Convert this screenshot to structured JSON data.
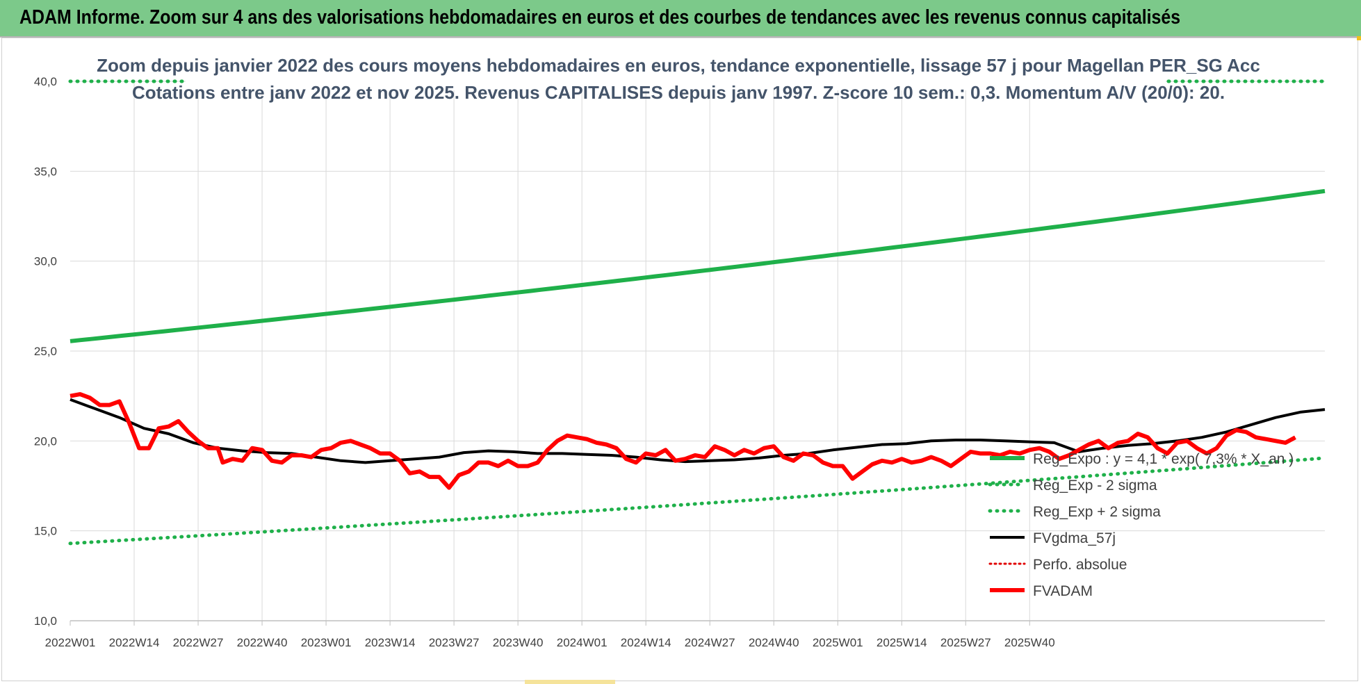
{
  "header": {
    "title": "ADAM Informe. Zoom sur 4 ans des valorisations hebdomadaires en euros et des courbes de tendances avec les revenus connus capitalisés"
  },
  "colors": {
    "header_bg": "#7cc98a",
    "trend": "#1fb04a",
    "band": "#1fb04a",
    "smooth": "#000000",
    "perf": "#e00000",
    "price": "#ff0000",
    "grid": "#d9d9d9"
  },
  "chart_data": {
    "type": "line",
    "title_lines": [
      "Zoom depuis janvier 2022 des cours moyens hebdomadaires en euros, tendance exponentielle, lissage 57 j pour Magellan PER_SG Acc",
      "Cotations entre janv 2022 et nov 2025. Revenus CAPITALISES depuis janv 1997. Z-score 10 sem.: 0,3. Momentum A/V (20/0): 20."
    ],
    "ylim": [
      10,
      40
    ],
    "y_ticks": [
      "10,0",
      "15,0",
      "20,0",
      "25,0",
      "30,0",
      "35,0",
      "40,0"
    ],
    "x_ticks": [
      "2022W01",
      "2022W14",
      "2022W27",
      "2022W40",
      "2023W01",
      "2023W14",
      "2023W27",
      "2023W40",
      "2024W01",
      "2024W14",
      "2024W27",
      "2024W40",
      "2025W01",
      "2025W14",
      "2025W27",
      "2025W40"
    ],
    "x_weeks_total": 206,
    "tick_step_weeks": 13,
    "legend_position": "right",
    "series": [
      {
        "name": "Reg_Expo : y = 4,1 * exp( 7,3% * X_an )",
        "style": "solid-thick",
        "color": "#1fb04a",
        "start": 25.55,
        "end": 33.9
      },
      {
        "name": "Reg_Exp - 2 sigma",
        "style": "dotted",
        "color": "#1fb04a",
        "start": 14.3,
        "end": 19.05
      },
      {
        "name": "Reg_Exp + 2 sigma",
        "style": "dotted",
        "color": "#1fb04a",
        "start": 40.0,
        "end": 40.0
      },
      {
        "name": "FVgdma_57j",
        "style": "solid",
        "color": "#000000",
        "points": [
          [
            0,
            22.3
          ],
          [
            5,
            21.8
          ],
          [
            10,
            21.3
          ],
          [
            15,
            20.7
          ],
          [
            20,
            20.4
          ],
          [
            25,
            19.9
          ],
          [
            30,
            19.6
          ],
          [
            35,
            19.45
          ],
          [
            40,
            19.35
          ],
          [
            45,
            19.3
          ],
          [
            50,
            19.1
          ],
          [
            55,
            18.9
          ],
          [
            60,
            18.8
          ],
          [
            65,
            18.9
          ],
          [
            70,
            19.0
          ],
          [
            75,
            19.1
          ],
          [
            80,
            19.35
          ],
          [
            85,
            19.45
          ],
          [
            90,
            19.4
          ],
          [
            95,
            19.3
          ],
          [
            100,
            19.3
          ],
          [
            105,
            19.25
          ],
          [
            110,
            19.2
          ],
          [
            115,
            19.1
          ],
          [
            120,
            18.95
          ],
          [
            125,
            18.85
          ],
          [
            130,
            18.9
          ],
          [
            135,
            18.95
          ],
          [
            140,
            19.05
          ],
          [
            145,
            19.2
          ],
          [
            150,
            19.3
          ],
          [
            155,
            19.5
          ],
          [
            160,
            19.65
          ],
          [
            165,
            19.8
          ],
          [
            170,
            19.85
          ],
          [
            175,
            20.0
          ],
          [
            180,
            20.05
          ],
          [
            185,
            20.05
          ],
          [
            190,
            20.0
          ],
          [
            195,
            19.95
          ],
          [
            200,
            19.9
          ],
          [
            205,
            19.4
          ],
          [
            210,
            19.6
          ],
          [
            215,
            19.75
          ],
          [
            220,
            19.85
          ],
          [
            225,
            20.0
          ],
          [
            230,
            20.2
          ],
          [
            235,
            20.5
          ],
          [
            240,
            20.9
          ],
          [
            245,
            21.3
          ],
          [
            250,
            21.6
          ],
          [
            255,
            21.75
          ]
        ]
      },
      {
        "name": "Perfo. absolue",
        "style": "dotted",
        "color": "#e00000",
        "points": []
      },
      {
        "name": "FVADAM",
        "style": "solid-thick",
        "color": "#ff0000",
        "points": [
          [
            0,
            22.5
          ],
          [
            2,
            22.6
          ],
          [
            4,
            22.4
          ],
          [
            6,
            22.0
          ],
          [
            8,
            22.0
          ],
          [
            10,
            22.2
          ],
          [
            12,
            21.0
          ],
          [
            14,
            19.6
          ],
          [
            16,
            19.6
          ],
          [
            18,
            20.7
          ],
          [
            20,
            20.8
          ],
          [
            22,
            21.1
          ],
          [
            24,
            20.5
          ],
          [
            26,
            20.0
          ],
          [
            28,
            19.6
          ],
          [
            30,
            19.6
          ],
          [
            31,
            18.8
          ],
          [
            33,
            19.0
          ],
          [
            35,
            18.9
          ],
          [
            37,
            19.6
          ],
          [
            39,
            19.5
          ],
          [
            41,
            18.9
          ],
          [
            43,
            18.8
          ],
          [
            45,
            19.2
          ],
          [
            47,
            19.2
          ],
          [
            49,
            19.1
          ],
          [
            51,
            19.5
          ],
          [
            53,
            19.6
          ],
          [
            55,
            19.9
          ],
          [
            57,
            20.0
          ],
          [
            59,
            19.8
          ],
          [
            61,
            19.6
          ],
          [
            63,
            19.3
          ],
          [
            65,
            19.3
          ],
          [
            67,
            18.9
          ],
          [
            69,
            18.2
          ],
          [
            71,
            18.3
          ],
          [
            73,
            18.0
          ],
          [
            75,
            18.0
          ],
          [
            77,
            17.4
          ],
          [
            79,
            18.1
          ],
          [
            81,
            18.3
          ],
          [
            83,
            18.8
          ],
          [
            85,
            18.8
          ],
          [
            87,
            18.6
          ],
          [
            89,
            18.9
          ],
          [
            91,
            18.6
          ],
          [
            93,
            18.6
          ],
          [
            95,
            18.8
          ],
          [
            97,
            19.5
          ],
          [
            99,
            20.0
          ],
          [
            101,
            20.3
          ],
          [
            103,
            20.2
          ],
          [
            105,
            20.1
          ],
          [
            107,
            19.9
          ],
          [
            109,
            19.8
          ],
          [
            111,
            19.6
          ],
          [
            113,
            19.0
          ],
          [
            115,
            18.8
          ],
          [
            117,
            19.3
          ],
          [
            119,
            19.2
          ],
          [
            121,
            19.5
          ],
          [
            123,
            18.9
          ],
          [
            125,
            19.0
          ],
          [
            127,
            19.2
          ],
          [
            129,
            19.1
          ],
          [
            131,
            19.7
          ],
          [
            133,
            19.5
          ],
          [
            135,
            19.2
          ],
          [
            137,
            19.5
          ],
          [
            139,
            19.3
          ],
          [
            141,
            19.6
          ],
          [
            143,
            19.7
          ],
          [
            145,
            19.1
          ],
          [
            147,
            18.9
          ],
          [
            149,
            19.3
          ],
          [
            151,
            19.2
          ],
          [
            153,
            18.8
          ],
          [
            155,
            18.6
          ],
          [
            157,
            18.6
          ],
          [
            159,
            17.9
          ],
          [
            161,
            18.3
          ],
          [
            163,
            18.7
          ],
          [
            165,
            18.9
          ],
          [
            167,
            18.8
          ],
          [
            169,
            19.0
          ],
          [
            171,
            18.8
          ],
          [
            173,
            18.9
          ],
          [
            175,
            19.1
          ],
          [
            177,
            18.9
          ],
          [
            179,
            18.6
          ],
          [
            181,
            19.0
          ],
          [
            183,
            19.4
          ],
          [
            185,
            19.3
          ],
          [
            187,
            19.3
          ],
          [
            189,
            19.2
          ],
          [
            191,
            19.4
          ],
          [
            193,
            19.3
          ],
          [
            195,
            19.5
          ],
          [
            197,
            19.6
          ],
          [
            199,
            19.4
          ],
          [
            201,
            19.0
          ],
          [
            203,
            19.2
          ],
          [
            205,
            19.5
          ],
          [
            207,
            19.8
          ],
          [
            209,
            20.0
          ],
          [
            211,
            19.6
          ],
          [
            213,
            19.9
          ],
          [
            215,
            20.0
          ],
          [
            217,
            20.4
          ],
          [
            219,
            20.2
          ],
          [
            221,
            19.6
          ],
          [
            223,
            19.3
          ],
          [
            225,
            19.9
          ],
          [
            227,
            20.0
          ],
          [
            229,
            19.6
          ],
          [
            231,
            19.3
          ],
          [
            233,
            19.6
          ],
          [
            235,
            20.3
          ],
          [
            237,
            20.6
          ],
          [
            239,
            20.5
          ],
          [
            241,
            20.2
          ],
          [
            243,
            20.1
          ],
          [
            245,
            20.0
          ],
          [
            247,
            19.9
          ],
          [
            249,
            20.2
          ]
        ]
      }
    ]
  }
}
